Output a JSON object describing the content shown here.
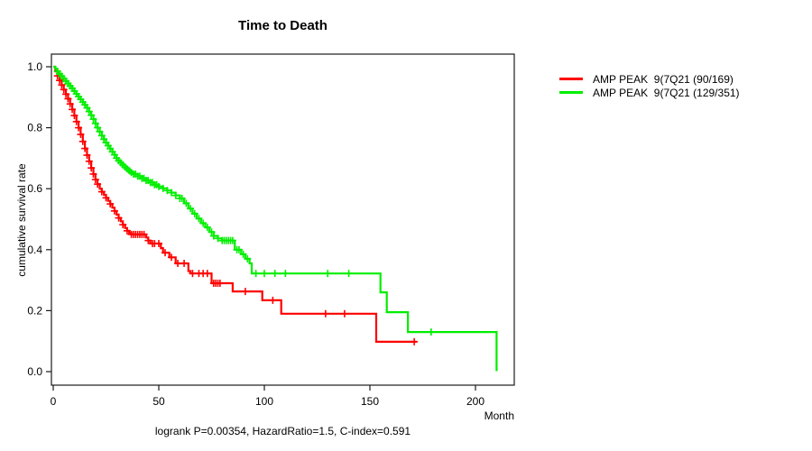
{
  "title": "Time to Death",
  "annotation": "logrank P=0.00354, HazardRatio=1.5, C-index=0.591",
  "axes": {
    "x_label": "Month",
    "y_label": "cumulative survival rate",
    "x_ticks": [
      "0",
      "50",
      "100",
      "150",
      "200"
    ],
    "y_ticks": [
      "0.0",
      "0.2",
      "0.4",
      "0.6",
      "0.8",
      "1.0"
    ]
  },
  "legend": {
    "items": [
      {
        "label": "AMP PEAK  9(7Q21 (90/169)",
        "color": "#ff0000"
      },
      {
        "label": "AMP PEAK  9(7Q21 (129/351)",
        "color": "#00ee00"
      }
    ]
  },
  "chart_data": {
    "type": "line",
    "subtype": "kaplan-meier-step",
    "title": "Time to Death",
    "xlabel": "Month",
    "ylabel": "cumulative survival rate",
    "xlim": [
      0,
      227
    ],
    "ylim": [
      0.0,
      1.0
    ],
    "x_tick_values": [
      0,
      50,
      100,
      150,
      200
    ],
    "y_tick_values": [
      0.0,
      0.2,
      0.4,
      0.6,
      0.8,
      1.0
    ],
    "grid": false,
    "legend_position": "outside-top-right",
    "series": [
      {
        "name": "AMP PEAK  9(7Q21 (90/169)",
        "color": "#ff0000",
        "end_month": 172,
        "steps": [
          [
            0,
            1.0
          ],
          [
            1,
            0.985
          ],
          [
            2,
            0.97
          ],
          [
            3,
            0.955
          ],
          [
            4,
            0.94
          ],
          [
            5,
            0.925
          ],
          [
            6,
            0.91
          ],
          [
            7,
            0.895
          ],
          [
            8,
            0.878
          ],
          [
            9,
            0.86
          ],
          [
            10,
            0.84
          ],
          [
            11,
            0.82
          ],
          [
            12,
            0.8
          ],
          [
            13,
            0.778
          ],
          [
            14,
            0.755
          ],
          [
            15,
            0.732
          ],
          [
            16,
            0.71
          ],
          [
            17,
            0.69
          ],
          [
            18,
            0.668
          ],
          [
            19,
            0.648
          ],
          [
            20,
            0.63
          ],
          [
            21,
            0.615
          ],
          [
            22,
            0.6
          ],
          [
            23,
            0.59
          ],
          [
            24,
            0.58
          ],
          [
            25,
            0.57
          ],
          [
            26,
            0.56
          ],
          [
            27,
            0.55
          ],
          [
            28,
            0.538
          ],
          [
            29,
            0.527
          ],
          [
            30,
            0.515
          ],
          [
            31,
            0.504
          ],
          [
            32,
            0.493
          ],
          [
            33,
            0.482
          ],
          [
            34,
            0.471
          ],
          [
            35,
            0.462
          ],
          [
            36,
            0.455
          ],
          [
            37,
            0.45
          ],
          [
            44,
            0.44
          ],
          [
            45,
            0.43
          ],
          [
            46,
            0.42
          ],
          [
            51,
            0.405
          ],
          [
            52,
            0.39
          ],
          [
            55,
            0.375
          ],
          [
            58,
            0.355
          ],
          [
            64,
            0.33
          ],
          [
            65,
            0.322
          ],
          [
            75,
            0.29
          ],
          [
            85,
            0.263
          ],
          [
            99,
            0.234
          ],
          [
            108,
            0.19
          ],
          [
            153,
            0.098
          ]
        ],
        "censor_months": [
          2,
          3,
          4,
          5,
          6,
          7,
          8,
          9,
          10,
          11,
          12,
          13,
          14,
          15,
          16,
          17,
          18,
          19,
          20,
          21,
          23,
          25,
          27,
          29,
          31,
          33,
          35,
          37,
          38,
          39,
          40,
          41,
          42,
          43,
          45,
          47,
          48,
          50,
          53,
          56,
          59,
          62,
          66,
          69,
          71,
          73,
          76,
          77,
          78,
          79,
          91,
          104,
          129,
          138,
          171
        ]
      },
      {
        "name": "AMP PEAK  9(7Q21 (129/351)",
        "color": "#00ee00",
        "end_month": 210.5,
        "steps": [
          [
            0,
            1.0
          ],
          [
            1,
            0.993
          ],
          [
            2,
            0.985
          ],
          [
            3,
            0.977
          ],
          [
            4,
            0.969
          ],
          [
            5,
            0.961
          ],
          [
            6,
            0.953
          ],
          [
            7,
            0.945
          ],
          [
            8,
            0.937
          ],
          [
            9,
            0.929
          ],
          [
            10,
            0.92
          ],
          [
            11,
            0.911
          ],
          [
            12,
            0.902
          ],
          [
            13,
            0.893
          ],
          [
            14,
            0.884
          ],
          [
            15,
            0.875
          ],
          [
            16,
            0.865
          ],
          [
            17,
            0.853
          ],
          [
            18,
            0.841
          ],
          [
            19,
            0.828
          ],
          [
            20,
            0.814
          ],
          [
            21,
            0.8
          ],
          [
            22,
            0.787
          ],
          [
            23,
            0.774
          ],
          [
            24,
            0.762
          ],
          [
            25,
            0.751
          ],
          [
            26,
            0.741
          ],
          [
            27,
            0.731
          ],
          [
            28,
            0.721
          ],
          [
            29,
            0.711
          ],
          [
            30,
            0.7
          ],
          [
            31,
            0.692
          ],
          [
            32,
            0.685
          ],
          [
            33,
            0.678
          ],
          [
            34,
            0.671
          ],
          [
            35,
            0.665
          ],
          [
            36,
            0.659
          ],
          [
            37,
            0.653
          ],
          [
            38,
            0.648
          ],
          [
            40,
            0.641
          ],
          [
            42,
            0.634
          ],
          [
            44,
            0.627
          ],
          [
            46,
            0.62
          ],
          [
            48,
            0.613
          ],
          [
            50,
            0.607
          ],
          [
            52,
            0.601
          ],
          [
            54,
            0.594
          ],
          [
            56,
            0.587
          ],
          [
            58,
            0.578
          ],
          [
            60,
            0.568
          ],
          [
            62,
            0.552
          ],
          [
            64,
            0.535
          ],
          [
            66,
            0.518
          ],
          [
            68,
            0.502
          ],
          [
            70,
            0.487
          ],
          [
            72,
            0.473
          ],
          [
            74,
            0.458
          ],
          [
            76,
            0.445
          ],
          [
            78,
            0.437
          ],
          [
            80,
            0.43
          ],
          [
            86,
            0.4
          ],
          [
            89,
            0.385
          ],
          [
            91,
            0.37
          ],
          [
            93,
            0.355
          ],
          [
            94,
            0.322
          ],
          [
            155,
            0.26
          ],
          [
            158,
            0.195
          ],
          [
            168,
            0.13
          ],
          [
            210,
            0.005
          ]
        ],
        "censor_months": [
          2,
          3,
          4,
          5,
          6,
          7,
          8,
          9,
          10,
          11,
          12,
          13,
          14,
          15,
          16,
          17,
          18,
          19,
          20,
          21,
          22,
          23,
          24,
          25,
          26,
          27,
          28,
          29,
          30,
          31,
          32,
          33,
          34,
          35,
          36,
          37,
          38,
          39,
          40,
          41,
          42,
          43,
          44,
          45,
          46,
          47,
          48,
          49,
          50,
          52,
          54,
          56,
          58,
          60,
          61,
          63,
          65,
          67,
          69,
          71,
          73,
          75,
          76,
          78,
          80,
          81,
          82,
          83,
          84,
          85,
          87,
          88,
          90,
          92,
          96,
          100,
          105,
          110,
          130,
          140,
          179
        ]
      }
    ]
  }
}
